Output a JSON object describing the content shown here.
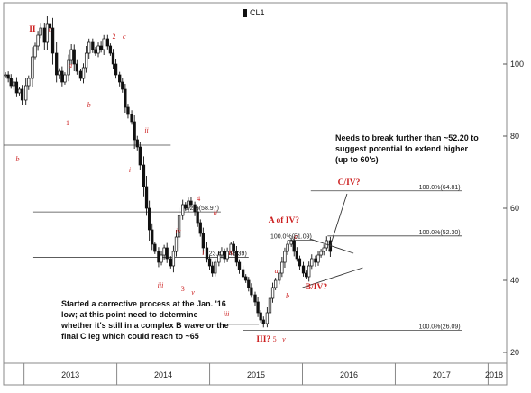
{
  "chart_data": {
    "type": "candlestick",
    "title": "",
    "legend": [
      "CL1"
    ],
    "legend_position": "top-center",
    "x_ticks": [
      "2013",
      "2014",
      "2015",
      "2016",
      "2017",
      "2018"
    ],
    "y_ticks": [
      20,
      40,
      60,
      80,
      100
    ],
    "ylim": [
      17,
      117
    ],
    "y_axis_position": "right",
    "grid": false,
    "series": [
      {
        "name": "CL1",
        "points": [
          {
            "t": 2012.8,
            "c": 97
          },
          {
            "t": 2012.83,
            "c": 96
          },
          {
            "t": 2012.86,
            "c": 94
          },
          {
            "t": 2012.89,
            "c": 95
          },
          {
            "t": 2012.92,
            "c": 92
          },
          {
            "t": 2012.95,
            "c": 93
          },
          {
            "t": 2012.98,
            "c": 90
          },
          {
            "t": 2013.02,
            "c": 94
          },
          {
            "t": 2013.05,
            "c": 96
          },
          {
            "t": 2013.09,
            "c": 102
          },
          {
            "t": 2013.12,
            "c": 105
          },
          {
            "t": 2013.15,
            "c": 108
          },
          {
            "t": 2013.18,
            "c": 110
          },
          {
            "t": 2013.22,
            "c": 106
          },
          {
            "t": 2013.25,
            "c": 111
          },
          {
            "t": 2013.28,
            "c": 110
          },
          {
            "t": 2013.31,
            "c": 103
          },
          {
            "t": 2013.35,
            "c": 97
          },
          {
            "t": 2013.38,
            "c": 98
          },
          {
            "t": 2013.41,
            "c": 95
          },
          {
            "t": 2013.44,
            "c": 97
          },
          {
            "t": 2013.48,
            "c": 101
          },
          {
            "t": 2013.51,
            "c": 104
          },
          {
            "t": 2013.54,
            "c": 100
          },
          {
            "t": 2013.57,
            "c": 98
          },
          {
            "t": 2013.61,
            "c": 96
          },
          {
            "t": 2013.64,
            "c": 99
          },
          {
            "t": 2013.67,
            "c": 103
          },
          {
            "t": 2013.7,
            "c": 106
          },
          {
            "t": 2013.74,
            "c": 104
          },
          {
            "t": 2013.77,
            "c": 103
          },
          {
            "t": 2013.8,
            "c": 105
          },
          {
            "t": 2013.83,
            "c": 104
          },
          {
            "t": 2013.86,
            "c": 107
          },
          {
            "t": 2013.9,
            "c": 105
          },
          {
            "t": 2013.93,
            "c": 103
          },
          {
            "t": 2013.96,
            "c": 100
          },
          {
            "t": 2013.99,
            "c": 97
          },
          {
            "t": 2014.03,
            "c": 95
          },
          {
            "t": 2014.06,
            "c": 93
          },
          {
            "t": 2014.09,
            "c": 88
          },
          {
            "t": 2014.12,
            "c": 86
          },
          {
            "t": 2014.16,
            "c": 84
          },
          {
            "t": 2014.19,
            "c": 79
          },
          {
            "t": 2014.22,
            "c": 77
          },
          {
            "t": 2014.25,
            "c": 72
          },
          {
            "t": 2014.29,
            "c": 66
          },
          {
            "t": 2014.32,
            "c": 60
          },
          {
            "t": 2014.35,
            "c": 54
          },
          {
            "t": 2014.38,
            "c": 50
          },
          {
            "t": 2014.41,
            "c": 48
          },
          {
            "t": 2014.45,
            "c": 45
          },
          {
            "t": 2014.48,
            "c": 47
          },
          {
            "t": 2014.51,
            "c": 49
          },
          {
            "t": 2014.54,
            "c": 46
          },
          {
            "t": 2014.58,
            "c": 44
          },
          {
            "t": 2014.61,
            "c": 48
          },
          {
            "t": 2014.64,
            "c": 52
          },
          {
            "t": 2014.67,
            "c": 58
          },
          {
            "t": 2014.71,
            "c": 61
          },
          {
            "t": 2014.74,
            "c": 60
          },
          {
            "t": 2014.77,
            "c": 62
          },
          {
            "t": 2014.8,
            "c": 61
          },
          {
            "t": 2014.84,
            "c": 59
          },
          {
            "t": 2014.87,
            "c": 56
          },
          {
            "t": 2014.9,
            "c": 53
          },
          {
            "t": 2014.93,
            "c": 49
          },
          {
            "t": 2014.97,
            "c": 46
          },
          {
            "t": 2015.0,
            "c": 44
          },
          {
            "t": 2015.03,
            "c": 42
          },
          {
            "t": 2015.06,
            "c": 45
          },
          {
            "t": 2015.1,
            "c": 47
          },
          {
            "t": 2015.13,
            "c": 48
          },
          {
            "t": 2015.16,
            "c": 46
          },
          {
            "t": 2015.19,
            "c": 48
          },
          {
            "t": 2015.23,
            "c": 50
          },
          {
            "t": 2015.26,
            "c": 48
          },
          {
            "t": 2015.29,
            "c": 45
          },
          {
            "t": 2015.32,
            "c": 43
          },
          {
            "t": 2015.36,
            "c": 41
          },
          {
            "t": 2015.39,
            "c": 40
          },
          {
            "t": 2015.42,
            "c": 38
          },
          {
            "t": 2015.45,
            "c": 36
          },
          {
            "t": 2015.49,
            "c": 34
          },
          {
            "t": 2015.52,
            "c": 31
          },
          {
            "t": 2015.55,
            "c": 29
          },
          {
            "t": 2015.58,
            "c": 28
          },
          {
            "t": 2015.62,
            "c": 31
          },
          {
            "t": 2015.65,
            "c": 35
          },
          {
            "t": 2015.68,
            "c": 38
          },
          {
            "t": 2015.71,
            "c": 40
          },
          {
            "t": 2015.75,
            "c": 42
          },
          {
            "t": 2015.78,
            "c": 45
          },
          {
            "t": 2015.81,
            "c": 48
          },
          {
            "t": 2015.84,
            "c": 50
          },
          {
            "t": 2015.88,
            "c": 51
          },
          {
            "t": 2015.91,
            "c": 48
          },
          {
            "t": 2015.94,
            "c": 46
          },
          {
            "t": 2015.97,
            "c": 44
          },
          {
            "t": 2016.01,
            "c": 42
          },
          {
            "t": 2016.04,
            "c": 41
          },
          {
            "t": 2016.07,
            "c": 44
          },
          {
            "t": 2016.1,
            "c": 46
          },
          {
            "t": 2016.14,
            "c": 45
          },
          {
            "t": 2016.17,
            "c": 47
          },
          {
            "t": 2016.2,
            "c": 48
          },
          {
            "t": 2016.23,
            "c": 49
          },
          {
            "t": 2016.26,
            "c": 51
          },
          {
            "t": 2016.3,
            "c": 48
          }
        ]
      }
    ],
    "horizontal_levels": [
      {
        "value": 77.5,
        "from": 2012.78,
        "to": 2014.58,
        "label": ""
      },
      {
        "value": 58.97,
        "from": 2013.1,
        "to": 2015.12,
        "label": "38.2%(58.97)"
      },
      {
        "value": 46.39,
        "from": 2013.1,
        "to": 2015.42,
        "label": "23.6%(46.39)"
      },
      {
        "value": 26.09,
        "from": 2015.36,
        "to": 2017.72,
        "label": "100.0%(26.09)"
      },
      {
        "value": 64.81,
        "from": 2016.09,
        "to": 2017.72,
        "label": "100.0%(64.81)"
      },
      {
        "value": 52.3,
        "from": 2016.27,
        "to": 2017.72,
        "label": "100.0%(52.30)"
      },
      {
        "value": 51.09,
        "from": 2015.84,
        "to": 2016.12,
        "label": "100.0%(51.09)"
      },
      {
        "value": 27.8,
        "from": 2014.82,
        "to": 2015.53,
        "label": ""
      }
    ],
    "annotations": [
      {
        "text": "II",
        "t": 2013.09,
        "v": 109,
        "style": "bold"
      },
      {
        "text": "c",
        "t": 2013.28,
        "v": 109,
        "style": "italic"
      },
      {
        "text": "2",
        "t": 2013.97,
        "v": 107,
        "style": ""
      },
      {
        "text": "c",
        "t": 2014.08,
        "v": 107,
        "style": "italic"
      },
      {
        "text": "a",
        "t": 2013.5,
        "v": 99,
        "style": "italic"
      },
      {
        "text": "b",
        "t": 2013.7,
        "v": 88,
        "style": "italic"
      },
      {
        "text": "1",
        "t": 2013.47,
        "v": 83,
        "style": ""
      },
      {
        "text": "ii",
        "t": 2014.32,
        "v": 81,
        "style": "italic"
      },
      {
        "text": "i",
        "t": 2014.14,
        "v": 70,
        "style": "italic"
      },
      {
        "text": "b",
        "t": 2012.93,
        "v": 73,
        "style": "italic"
      },
      {
        "text": "4",
        "t": 2014.88,
        "v": 62,
        "style": ""
      },
      {
        "text": "ii",
        "t": 2015.06,
        "v": 58,
        "style": "italic"
      },
      {
        "text": "iv",
        "t": 2014.66,
        "v": 53,
        "style": "italic"
      },
      {
        "text": "i",
        "t": 2014.93,
        "v": 47,
        "style": "italic"
      },
      {
        "text": "iv",
        "t": 2015.23,
        "v": 47,
        "style": "italic"
      },
      {
        "text": "iii",
        "t": 2014.47,
        "v": 38,
        "style": "italic"
      },
      {
        "text": "3",
        "t": 2014.71,
        "v": 37,
        "style": ""
      },
      {
        "text": "v",
        "t": 2014.82,
        "v": 36,
        "style": "italic"
      },
      {
        "text": "iii",
        "t": 2015.18,
        "v": 30,
        "style": "italic"
      },
      {
        "text": "III?",
        "t": 2015.58,
        "v": 23,
        "style": "bold"
      },
      {
        "text": "5",
        "t": 2015.7,
        "v": 23,
        "style": ""
      },
      {
        "text": "v",
        "t": 2015.8,
        "v": 23,
        "style": "italic"
      },
      {
        "text": "a",
        "t": 2015.72,
        "v": 42,
        "style": "italic"
      },
      {
        "text": "b",
        "t": 2015.84,
        "v": 35,
        "style": "italic"
      },
      {
        "text": "c",
        "t": 2015.93,
        "v": 51.5,
        "style": "italic"
      },
      {
        "text": "A of IV?",
        "t": 2015.8,
        "v": 56,
        "style": "bold"
      },
      {
        "text": "C/IV?",
        "t": 2016.5,
        "v": 66.5,
        "style": "bold"
      },
      {
        "text": "B/IV?",
        "t": 2016.15,
        "v": 37.5,
        "style": "bold"
      }
    ],
    "trend_lines": [
      {
        "t1": 2016.08,
        "v1": 51.5,
        "t2": 2016.55,
        "v2": 47.5
      },
      {
        "t1": 2016.0,
        "v1": 38,
        "t2": 2016.65,
        "v2": 43.5
      },
      {
        "t1": 2016.28,
        "v1": 48,
        "t2": 2016.48,
        "v2": 64
      }
    ],
    "text_notes": {
      "upper": "Needs to break further than ~52.20 to suggest potential to extend higher (up to 60's)",
      "lower": "Started a corrective process at the Jan. '16 low; at this point need to determine whether it's still in a complex B wave or the final C leg which could reach to ~65"
    },
    "colors": {
      "candles": "#111111",
      "annotations": "#cc1f1f",
      "levels": "#444444"
    }
  }
}
